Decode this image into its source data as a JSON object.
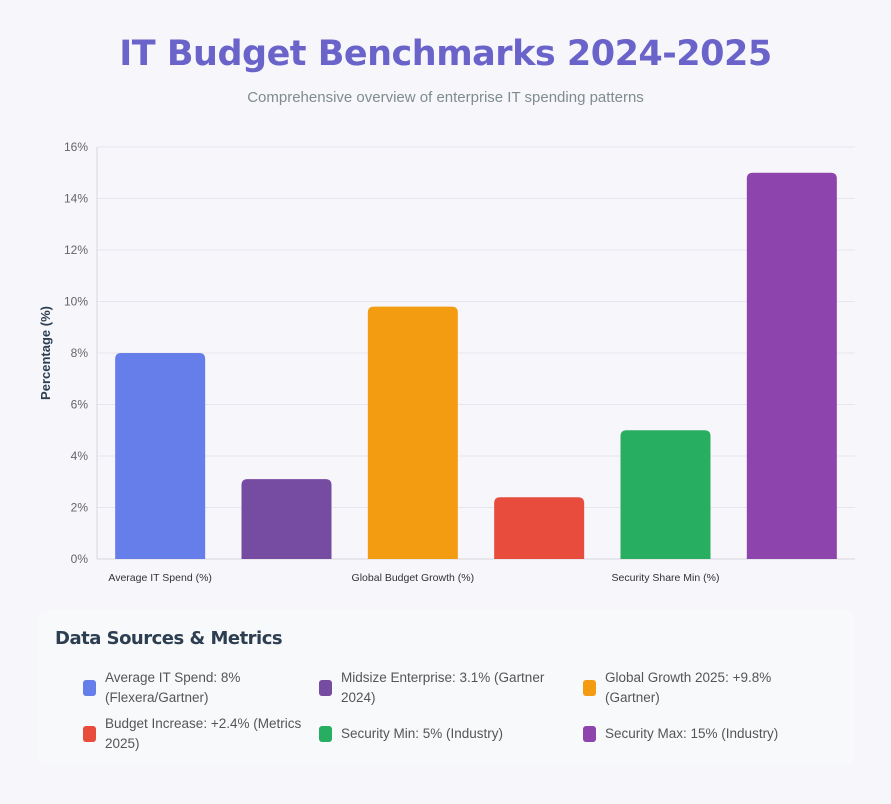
{
  "header": {
    "title": "IT Budget Benchmarks 2024-2025",
    "subtitle": "Comprehensive overview of enterprise IT spending patterns"
  },
  "chart_data": {
    "type": "bar",
    "categories": [
      "Average IT Spend (%)",
      "",
      "Global Budget Growth (%)",
      "",
      "Security Share Min (%)",
      ""
    ],
    "values": [
      8,
      3.1,
      9.8,
      2.4,
      5,
      15
    ],
    "colors": [
      "#667eea",
      "#764ba2",
      "#f39c12",
      "#e74c3c",
      "#27ae60",
      "#8e44ad"
    ],
    "ylabel": "Percentage (%)",
    "ylim": [
      0,
      16
    ],
    "yticks": [
      "0%",
      "2%",
      "4%",
      "6%",
      "8%",
      "10%",
      "12%",
      "14%",
      "16%"
    ],
    "grid": true
  },
  "sources": {
    "title": "Data Sources & Metrics",
    "items": [
      {
        "label": "Average IT Spend: 8% (Flexera/Gartner)",
        "color": "#667eea"
      },
      {
        "label": "Midsize Enterprise: 3.1% (Gartner 2024)",
        "color": "#764ba2"
      },
      {
        "label": "Global Growth 2025: +9.8% (Gartner)",
        "color": "#f39c12"
      },
      {
        "label": "Budget Increase: +2.4% (Metrics 2025)",
        "color": "#e74c3c"
      },
      {
        "label": "Security Min: 5% (Industry)",
        "color": "#27ae60"
      },
      {
        "label": "Security Max: 15% (Industry)",
        "color": "#8e44ad"
      }
    ]
  }
}
